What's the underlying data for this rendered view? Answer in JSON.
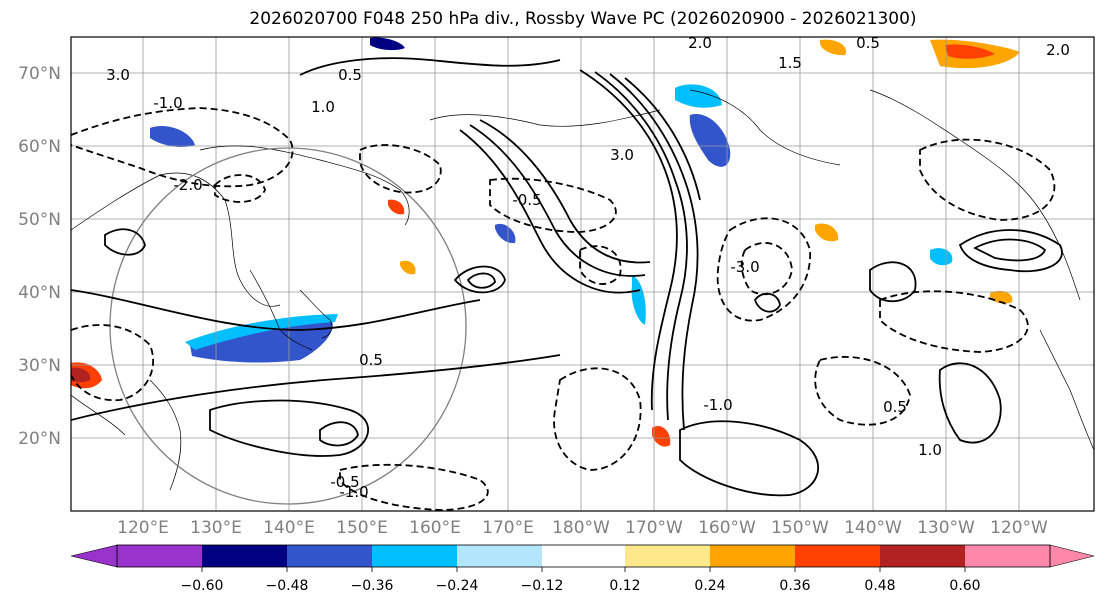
{
  "title": "2026020700 F048 250 hPa div., Rossby Wave PC (2026020900 - 2026021300)",
  "map": {
    "lat_labels": [
      "70°N",
      "60°N",
      "50°N",
      "40°N",
      "30°N",
      "20°N"
    ],
    "lon_labels": [
      "120°E",
      "130°E",
      "140°E",
      "150°E",
      "160°E",
      "170°E",
      "180°W",
      "170°W",
      "160°W",
      "150°W",
      "140°W",
      "130°W",
      "120°W"
    ],
    "contour_labels": [
      "3.0",
      "0.5",
      "-1.0",
      "-2.0",
      "2.0",
      "1.5",
      "-0.5",
      "0.5",
      "3.0",
      "-3.0",
      "2.0",
      "-1.0",
      "1.0",
      "0.5",
      "-0.5",
      "1.0",
      "-1.0",
      "0.5"
    ],
    "label_color": "#808080"
  },
  "colorbar": {
    "colors": [
      "#9933cc",
      "#000080",
      "#3355cc",
      "#00bfff",
      "#b3e5fc",
      "#ffffff",
      "#ffe88a",
      "#ffa500",
      "#ff4000",
      "#b22222",
      "#ff88aa"
    ],
    "tick_labels": [
      "−0.60",
      "−0.48",
      "−0.36",
      "−0.24",
      "−0.12",
      "0.12",
      "0.24",
      "0.36",
      "0.48",
      "0.60"
    ]
  }
}
